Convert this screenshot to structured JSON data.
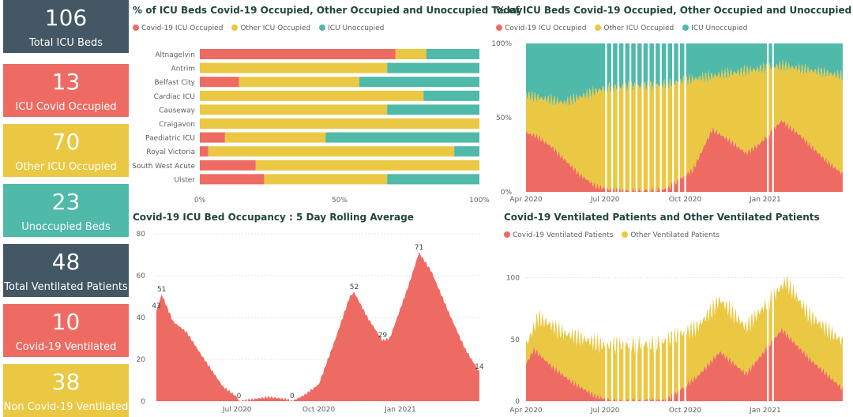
{
  "colors": {
    "covid": "#ee6b63",
    "other": "#eac843",
    "unocc": "#4fb9aa",
    "dark": "#435764",
    "grid": "#e6e6e6",
    "axis": "#605e5c"
  },
  "kpis": [
    {
      "value": "106",
      "label": "Total ICU Beds",
      "color": "dark"
    },
    {
      "value": "13",
      "label": "ICU Covid Occupied",
      "color": "red"
    },
    {
      "value": "70",
      "label": "Other ICU Occupied",
      "color": "yel"
    },
    {
      "value": "23",
      "label": "Unoccupied Beds",
      "color": "teal"
    },
    {
      "value": "48",
      "label": "Total Ventilated Patients",
      "color": "dark"
    },
    {
      "value": "10",
      "label": "Covid-19 Ventilated",
      "color": "red"
    },
    {
      "value": "38",
      "label": "Non Covid-19 Ventilated",
      "color": "yel"
    }
  ],
  "chart_data": [
    {
      "type": "bar",
      "orientation": "horizontal-stacked-100",
      "title": "% of ICU Beds Covid-19 Occupied, Other Occupied and Unoccupied Today",
      "legend": [
        "Covid-19 ICU Occupied",
        "Other ICU Occupied",
        "ICU Unoccupied"
      ],
      "categories": [
        "Altnagelvin",
        "Antrim",
        "Belfast City",
        "Cardiac ICU",
        "Causeway",
        "Craigavon",
        "Paediatric ICU",
        "Royal Victoria",
        "South West Acute",
        "Ulster"
      ],
      "series": [
        {
          "name": "Covid-19 ICU Occupied",
          "values": [
            70,
            0,
            14,
            0,
            0,
            0,
            9,
            3,
            20,
            23
          ]
        },
        {
          "name": "Other ICU Occupied",
          "values": [
            11,
            67,
            43,
            80,
            67,
            100,
            36,
            88,
            80,
            44
          ]
        },
        {
          "name": "ICU Unoccupied",
          "values": [
            19,
            33,
            43,
            20,
            33,
            0,
            55,
            9,
            0,
            33
          ]
        }
      ],
      "xticks": [
        "0%",
        "50%",
        "100%"
      ]
    },
    {
      "type": "area",
      "stacked": "100%",
      "title": "% of ICU Beds Covid-19 Occupied, Other Occupied and Unoccupied",
      "legend": [
        "Covid-19 ICU Occupied",
        "Other ICU Occupied",
        "ICU Unoccupied"
      ],
      "x_range": [
        "2020-04-01",
        "2021-03-31"
      ],
      "xticks": [
        {
          "date": "2020-04-01",
          "label": "Apr 2020"
        },
        {
          "date": "2020-07-01",
          "label": "Jul 2020"
        },
        {
          "date": "2020-10-01",
          "label": "Oct 2020"
        },
        {
          "date": "2021-01-01",
          "label": "Jan 2021"
        }
      ],
      "yticks": [
        "0%",
        "50%",
        "100%"
      ],
      "covid_pct_key": [
        {
          "date": "2020-04-01",
          "value": 40
        },
        {
          "date": "2020-04-15",
          "value": 37
        },
        {
          "date": "2020-05-01",
          "value": 30
        },
        {
          "date": "2020-05-15",
          "value": 22
        },
        {
          "date": "2020-06-01",
          "value": 12
        },
        {
          "date": "2020-06-20",
          "value": 4
        },
        {
          "date": "2020-07-10",
          "value": 1
        },
        {
          "date": "2020-08-10",
          "value": 1
        },
        {
          "date": "2020-09-10",
          "value": 2
        },
        {
          "date": "2020-10-10",
          "value": 15
        },
        {
          "date": "2020-11-01",
          "value": 42
        },
        {
          "date": "2020-11-20",
          "value": 35
        },
        {
          "date": "2020-12-10",
          "value": 26
        },
        {
          "date": "2020-12-25",
          "value": 32
        },
        {
          "date": "2021-01-20",
          "value": 48
        },
        {
          "date": "2021-02-10",
          "value": 38
        },
        {
          "date": "2021-03-10",
          "value": 22
        },
        {
          "date": "2021-03-31",
          "value": 12
        }
      ],
      "unoccupied_pct_key": [
        {
          "date": "2020-04-01",
          "value": 35
        },
        {
          "date": "2020-05-15",
          "value": 40
        },
        {
          "date": "2020-07-01",
          "value": 30
        },
        {
          "date": "2020-09-01",
          "value": 28
        },
        {
          "date": "2020-11-01",
          "value": 22
        },
        {
          "date": "2021-01-20",
          "value": 15
        },
        {
          "date": "2021-03-31",
          "value": 22
        }
      ]
    },
    {
      "type": "area",
      "title": "Covid-19 ICU Bed Occupancy : 5 Day Rolling Average",
      "x_range": [
        "2020-04-01",
        "2021-03-31"
      ],
      "xticks": [
        {
          "date": "2020-07-01",
          "label": "Jul 2020"
        },
        {
          "date": "2020-10-01",
          "label": "Oct 2020"
        },
        {
          "date": "2021-01-01",
          "label": "Jan 2021"
        }
      ],
      "ylim": [
        0,
        80
      ],
      "yticks": [
        0,
        20,
        40,
        60,
        80
      ],
      "key_points": [
        {
          "date": "2020-04-01",
          "value": 43
        },
        {
          "date": "2020-04-07",
          "value": 51
        },
        {
          "date": "2020-04-20",
          "value": 38
        },
        {
          "date": "2020-05-05",
          "value": 33
        },
        {
          "date": "2020-05-25",
          "value": 20
        },
        {
          "date": "2020-06-15",
          "value": 7
        },
        {
          "date": "2020-07-01",
          "value": 2
        },
        {
          "date": "2020-07-03",
          "value": 0
        },
        {
          "date": "2020-07-20",
          "value": 1
        },
        {
          "date": "2020-08-05",
          "value": 2
        },
        {
          "date": "2020-08-25",
          "value": 1
        },
        {
          "date": "2020-09-01",
          "value": 0
        },
        {
          "date": "2020-09-15",
          "value": 3
        },
        {
          "date": "2020-10-01",
          "value": 8
        },
        {
          "date": "2020-10-20",
          "value": 30
        },
        {
          "date": "2020-11-05",
          "value": 50
        },
        {
          "date": "2020-11-10",
          "value": 52
        },
        {
          "date": "2020-11-25",
          "value": 40
        },
        {
          "date": "2020-12-12",
          "value": 29
        },
        {
          "date": "2020-12-20",
          "value": 30
        },
        {
          "date": "2021-01-10",
          "value": 55
        },
        {
          "date": "2021-01-22",
          "value": 71
        },
        {
          "date": "2021-02-05",
          "value": 62
        },
        {
          "date": "2021-02-25",
          "value": 42
        },
        {
          "date": "2021-03-15",
          "value": 25
        },
        {
          "date": "2021-03-31",
          "value": 14
        }
      ],
      "data_labels": [
        {
          "date": "2020-04-01",
          "value": 43,
          "text": "43"
        },
        {
          "date": "2020-04-07",
          "value": 51,
          "text": "51"
        },
        {
          "date": "2020-07-03",
          "value": 0,
          "text": "0"
        },
        {
          "date": "2020-09-01",
          "value": 0,
          "text": "0"
        },
        {
          "date": "2020-11-10",
          "value": 52,
          "text": "52"
        },
        {
          "date": "2020-12-12",
          "value": 29,
          "text": "29"
        },
        {
          "date": "2021-01-22",
          "value": 71,
          "text": "71"
        },
        {
          "date": "2021-03-31",
          "value": 14,
          "text": "14"
        }
      ]
    },
    {
      "type": "area",
      "stacked": true,
      "title": "Covid-19 Ventilated Patients and Other Ventilated Patients",
      "legend": [
        "Covid-19 Ventilated Patients",
        "Other Ventilated Patients"
      ],
      "x_range": [
        "2020-04-01",
        "2021-03-31"
      ],
      "xticks": [
        {
          "date": "2020-04-01",
          "label": "Apr 2020"
        },
        {
          "date": "2020-07-01",
          "label": "Jul 2020"
        },
        {
          "date": "2020-10-01",
          "label": "Oct 2020"
        },
        {
          "date": "2021-01-01",
          "label": "Jan 2021"
        }
      ],
      "ylim": [
        0,
        110
      ],
      "yticks": [
        0,
        50,
        100
      ],
      "covid_key": [
        {
          "date": "2020-04-01",
          "value": 30
        },
        {
          "date": "2020-04-10",
          "value": 42
        },
        {
          "date": "2020-05-01",
          "value": 28
        },
        {
          "date": "2020-05-25",
          "value": 15
        },
        {
          "date": "2020-06-20",
          "value": 4
        },
        {
          "date": "2020-07-10",
          "value": 0
        },
        {
          "date": "2020-09-10",
          "value": 1
        },
        {
          "date": "2020-10-15",
          "value": 20
        },
        {
          "date": "2020-11-10",
          "value": 40
        },
        {
          "date": "2020-12-10",
          "value": 22
        },
        {
          "date": "2021-01-20",
          "value": 58
        },
        {
          "date": "2021-02-20",
          "value": 35
        },
        {
          "date": "2021-03-31",
          "value": 10
        }
      ],
      "total_key": [
        {
          "date": "2020-04-01",
          "value": 45
        },
        {
          "date": "2020-04-15",
          "value": 68
        },
        {
          "date": "2020-05-15",
          "value": 55
        },
        {
          "date": "2020-07-01",
          "value": 45
        },
        {
          "date": "2020-09-01",
          "value": 47
        },
        {
          "date": "2020-10-15",
          "value": 60
        },
        {
          "date": "2020-11-10",
          "value": 82
        },
        {
          "date": "2020-12-10",
          "value": 60
        },
        {
          "date": "2021-01-25",
          "value": 97
        },
        {
          "date": "2021-02-20",
          "value": 70
        },
        {
          "date": "2021-03-31",
          "value": 48
        }
      ]
    }
  ]
}
